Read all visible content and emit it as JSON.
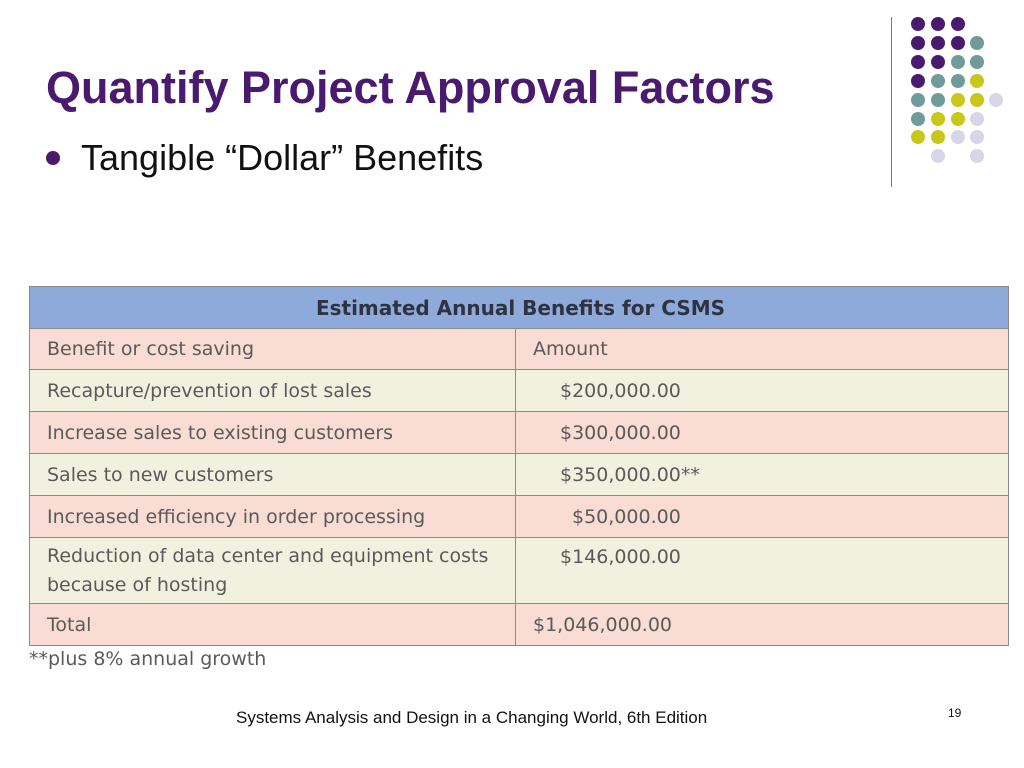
{
  "slide": {
    "title": "Quantify Project Approval Factors",
    "bullet": "Tangible “Dollar” Benefits",
    "footer": "Systems Analysis and Design in a Changing World, 6th Edition",
    "page_number": "19"
  },
  "table": {
    "caption": "Estimated Annual Benefits for CSMS",
    "headers": [
      "Benefit or cost saving",
      "Amount"
    ],
    "rows": [
      {
        "label": "Recapture/prevention of lost sales",
        "amount": "$200,000.00"
      },
      {
        "label": "Increase sales to existing customers",
        "amount": "$300,000.00"
      },
      {
        "label": "Sales to new customers",
        "amount": "$350,000.00**"
      },
      {
        "label": "Increased efficiency in order processing",
        "amount": "$50,000.00"
      },
      {
        "label": "Reduction of data center and equipment costs because of hosting",
        "amount": "$146,000.00"
      }
    ],
    "total_label": "Total",
    "total_amount": "$1,046,000.00",
    "footnote": "**plus 8% annual growth"
  },
  "colors": {
    "title": "#4a1a6e",
    "caption_bg": "#8eaadb",
    "row_pink": "#f9dcd3",
    "row_cream": "#f0f2df",
    "dot_purple": "#4a1a6e",
    "dot_teal": "#6f9c9a",
    "dot_yellow": "#c8c81a",
    "dot_lavender": "#d6d6e6"
  }
}
